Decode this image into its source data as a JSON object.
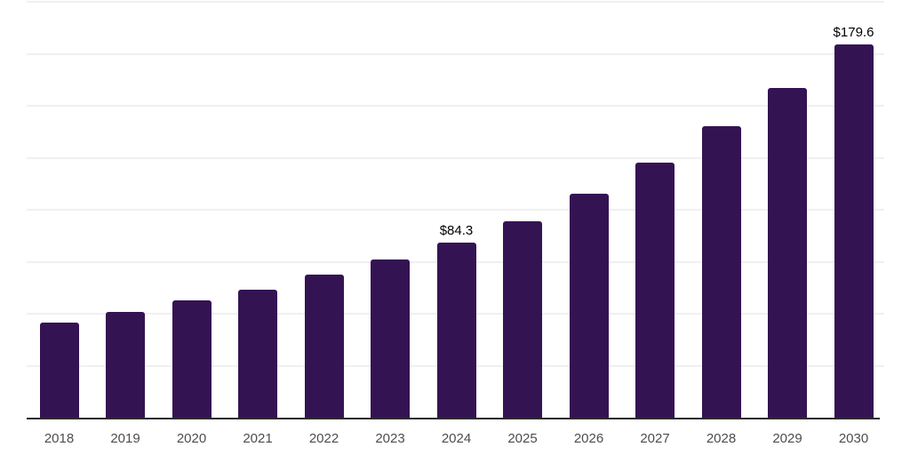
{
  "chart_data": {
    "type": "bar",
    "title": "",
    "xlabel": "",
    "ylabel": "",
    "categories": [
      "2018",
      "2019",
      "2020",
      "2021",
      "2022",
      "2023",
      "2024",
      "2025",
      "2026",
      "2027",
      "2028",
      "2029",
      "2030"
    ],
    "values": [
      45.7,
      50.8,
      56.2,
      61.7,
      68.8,
      76.2,
      84.3,
      94.3,
      107.8,
      122.7,
      140.2,
      158.5,
      179.6
    ],
    "value_labels": [
      "",
      "",
      "",
      "",
      "",
      "",
      "$84.3",
      "",
      "",
      "",
      "",
      "",
      "$179.6"
    ],
    "ylim": [
      0,
      200
    ],
    "grid": true,
    "grid_step": 25,
    "legend": false,
    "bar_color": "#341353",
    "gridline_color": "#f0f0f0",
    "axis_line_color": "#2b2b2b",
    "tick_label_color": "#4d4d4d",
    "value_label_color": "#000000",
    "background_color": "#ffffff"
  }
}
